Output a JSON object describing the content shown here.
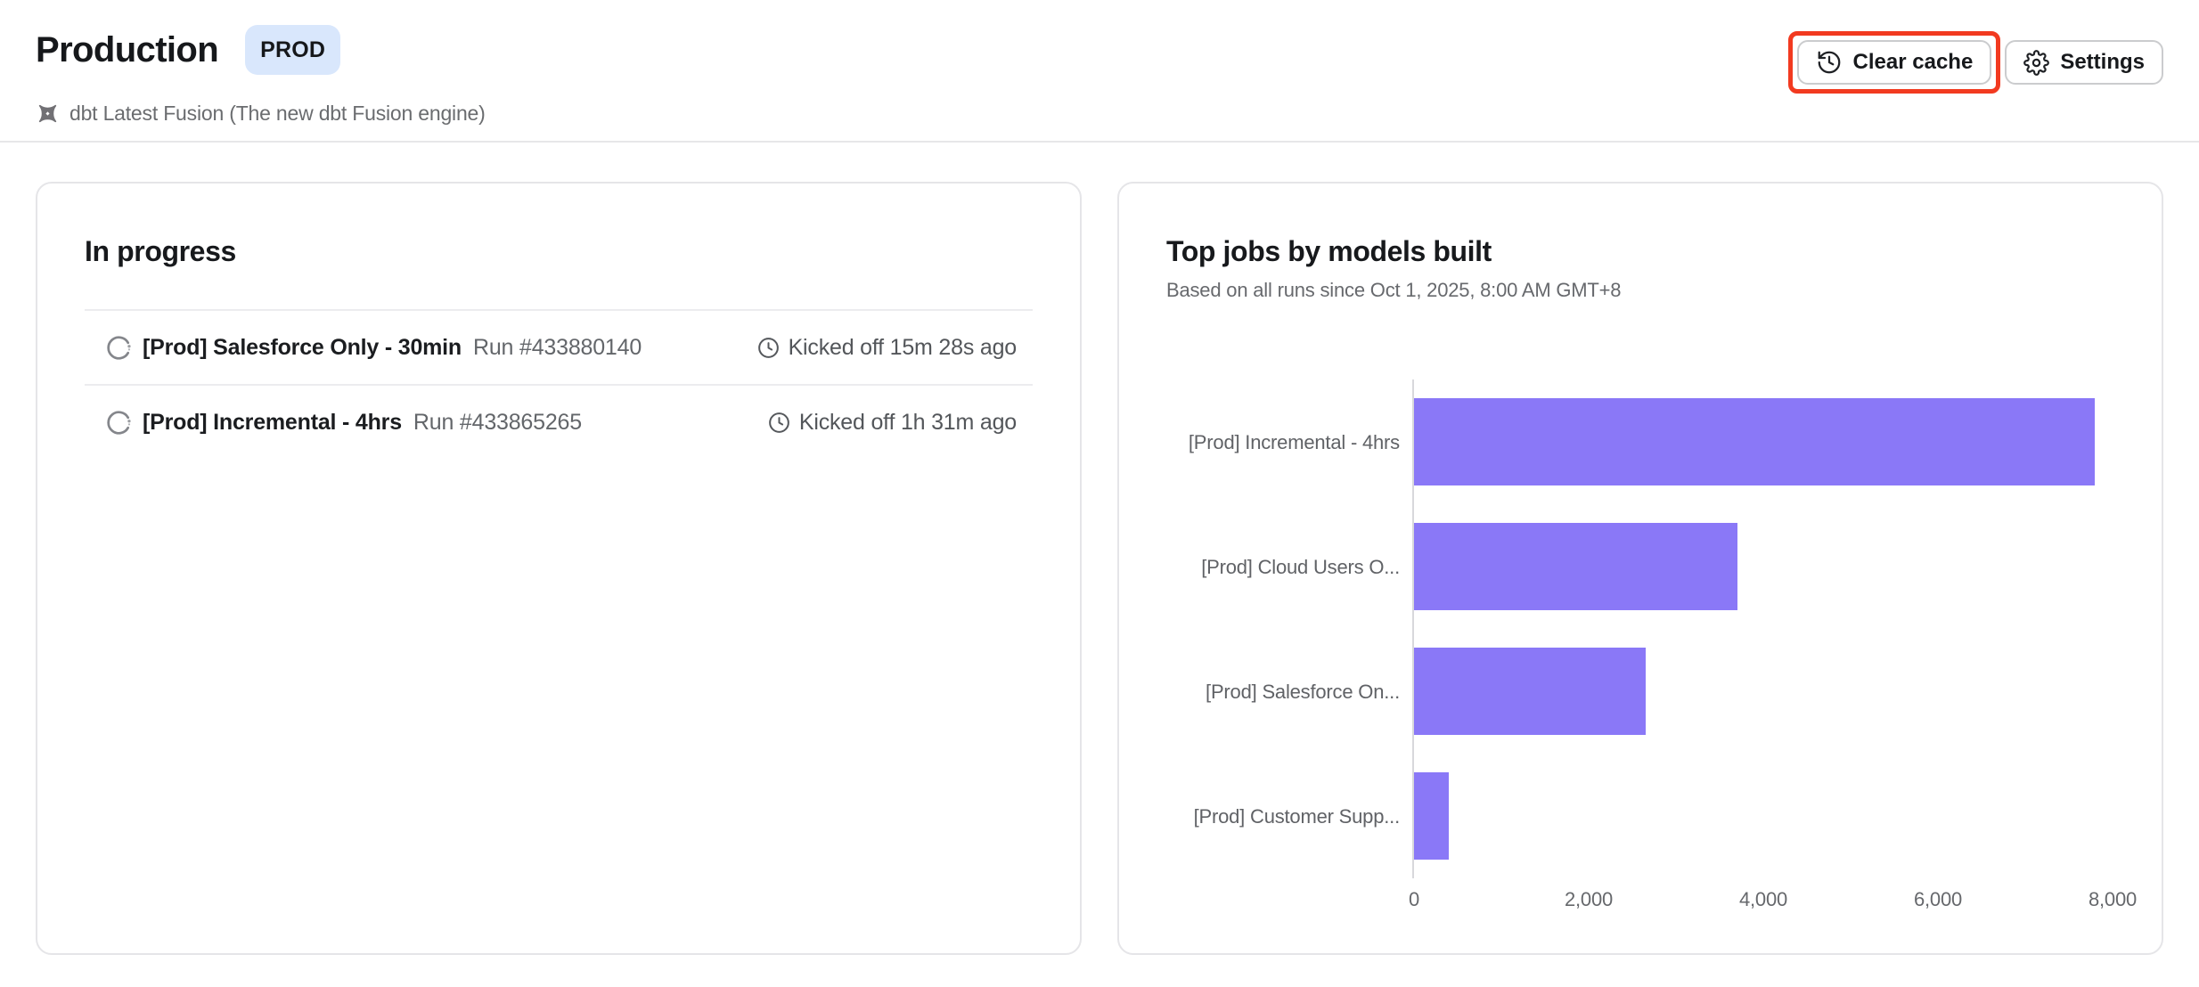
{
  "header": {
    "title": "Production",
    "badge": "PROD",
    "subtitle": "dbt Latest Fusion (The new dbt Fusion engine)",
    "clear_cache_label": "Clear cache",
    "settings_label": "Settings"
  },
  "in_progress": {
    "title": "In progress",
    "runs": [
      {
        "job_name": "[Prod] Salesforce Only - 30min",
        "run_number": "Run #433880140",
        "kicked_off": "Kicked off 15m 28s ago"
      },
      {
        "job_name": "[Prod] Incremental - 4hrs",
        "run_number": "Run #433865265",
        "kicked_off": "Kicked off 1h 31m ago"
      }
    ]
  },
  "top_jobs": {
    "title": "Top jobs by models built",
    "subtitle": "Based on all runs since Oct 1, 2025, 8:00 AM GMT+8"
  },
  "chart_data": {
    "type": "bar",
    "orientation": "horizontal",
    "title": "Top jobs by models built",
    "categories": [
      "[Prod] Incremental - 4hrs",
      "[Prod] Cloud Users O...",
      "[Prod] Salesforce On...",
      "[Prod] Customer Supp..."
    ],
    "values": [
      7800,
      3700,
      2650,
      400
    ],
    "x_ticks": [
      0,
      2000,
      4000,
      6000,
      8000
    ],
    "x_tick_labels": [
      "0",
      "2,000",
      "4,000",
      "6,000",
      "8,000"
    ],
    "xlim": [
      0,
      8100
    ],
    "xlabel": "",
    "ylabel": "",
    "grid": false,
    "legend": false,
    "bar_color": "#8A78F7"
  },
  "colors": {
    "bar_purple": "#8A78F7",
    "badge_bg": "#D9E7FC",
    "annotation_red": "#F23A20",
    "border_gray": "#E5E5E8"
  }
}
